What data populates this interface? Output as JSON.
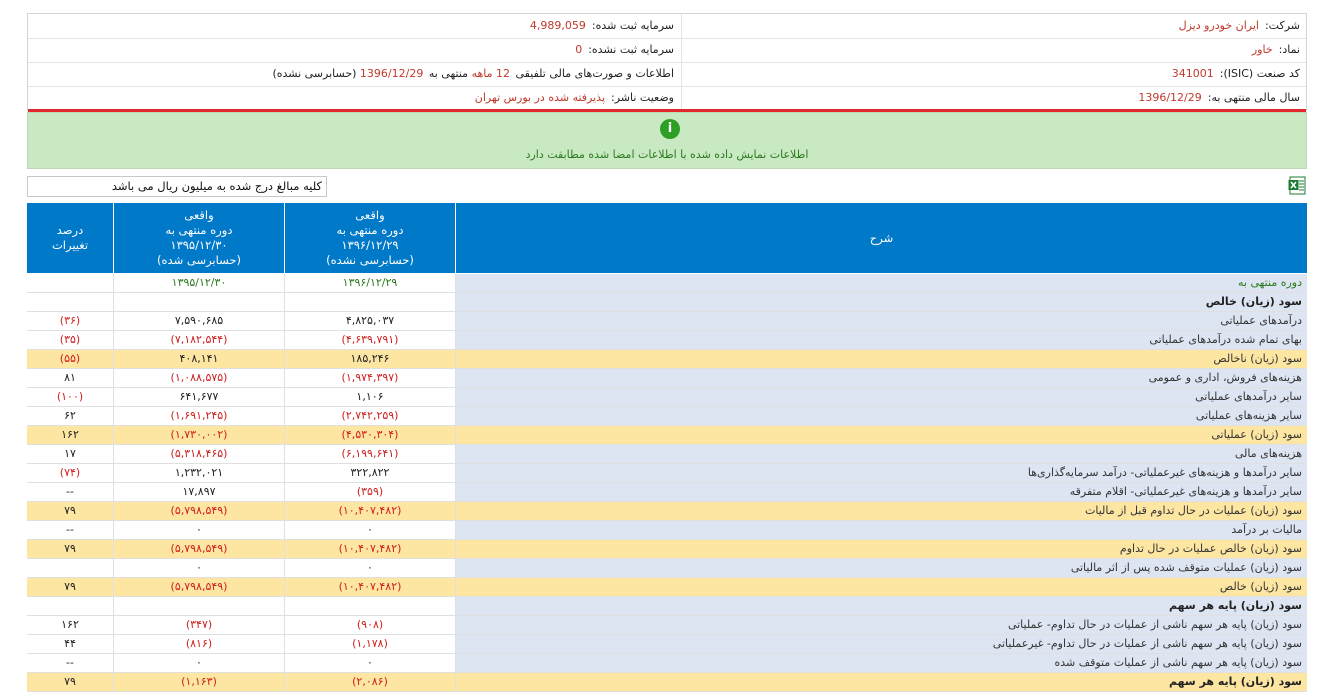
{
  "info": {
    "company_label": "شرکت:",
    "company_value": "ایران خودرو دیزل",
    "capital_label": "سرمایه ثبت شده:",
    "capital_value": "4,989,059",
    "symbol_label": "نماد:",
    "symbol_value": "خاور",
    "unreg_capital_label": "سرمایه ثبت نشده:",
    "unreg_capital_value": "0",
    "isic_label": "کد صنعت (ISIC):",
    "isic_value": "341001",
    "report_prefix": "اطلاعات و صورت‌های مالی تلفیقی",
    "report_period": "12 ماهه",
    "report_mid": "منتهی به",
    "report_date": "1396/12/29",
    "report_suffix": "(حسابرسی نشده)",
    "fy_label": "سال مالی منتهی به:",
    "fy_value": "1396/12/29",
    "status_label": "وضعیت ناشر:",
    "status_value": "پذیرفته شده در بورس تهران"
  },
  "notice": {
    "icon": "info-icon",
    "text": "اطلاعات نمایش داده شده با اطلاعات امضا شده مطابقت دارد"
  },
  "unit_note": "کلیه مبالغ درج شده به میلیون ریال می باشد",
  "excel_icon": "excel-export-icon",
  "colors": {
    "header_blue": "#0079c9",
    "highlight": "#fde5a2",
    "negative": "#d01f1f",
    "label_bg": "#dde5f2"
  },
  "table": {
    "headers": {
      "desc": "شرح",
      "cur_1": "واقعی",
      "cur_2": "دوره منتهی به",
      "cur_3": "۱۳۹۶/۱۲/۲۹",
      "cur_4": "(حسابرسی نشده)",
      "prev_1": "واقعی",
      "prev_2": "دوره منتهی به",
      "prev_3": "۱۳۹۵/۱۲/۳۰",
      "prev_4": "(حسابرسی شده)",
      "chg_1": "درصد",
      "chg_2": "تغییرات"
    },
    "rows": [
      {
        "label": "دوره منتهی به",
        "cur": "۱۳۹۶/۱۲/۲۹",
        "prev": "۱۳۹۵/۱۲/۳۰",
        "chg": "",
        "type": "date"
      },
      {
        "label": "سود (زیان) خالص",
        "cur": "",
        "prev": "",
        "chg": "",
        "type": "bold"
      },
      {
        "label": "درآمدهای عملیاتی",
        "cur": "۴,۸۲۵,۰۳۷",
        "prev": "۷,۵۹۰,۶۸۵",
        "chg": "(۳۶)",
        "type": ""
      },
      {
        "label": "بهای تمام شده درآمدهای عملیاتی",
        "cur": "(۴,۶۳۹,۷۹۱)",
        "prev": "(۷,۱۸۲,۵۴۴)",
        "chg": "(۳۵)",
        "type": ""
      },
      {
        "label": "سود (زیان) ناخالص",
        "cur": "۱۸۵,۲۴۶",
        "prev": "۴۰۸,۱۴۱",
        "chg": "(۵۵)",
        "type": "hl"
      },
      {
        "label": "هزینه‌های فروش، اداری و عمومی",
        "cur": "(۱,۹۷۴,۳۹۷)",
        "prev": "(۱,۰۸۸,۵۷۵)",
        "chg": "۸۱",
        "type": ""
      },
      {
        "label": "سایر درآمدهای عملیاتی",
        "cur": "۱,۱۰۶",
        "prev": "۶۴۱,۶۷۷",
        "chg": "(۱۰۰)",
        "type": ""
      },
      {
        "label": "سایر هزینه‌های عملیاتی",
        "cur": "(۲,۷۴۲,۲۵۹)",
        "prev": "(۱,۶۹۱,۲۴۵)",
        "chg": "۶۲",
        "type": ""
      },
      {
        "label": "سود (زیان) عملیاتی",
        "cur": "(۴,۵۳۰,۳۰۴)",
        "prev": "(۱,۷۳۰,۰۰۲)",
        "chg": "۱۶۲",
        "type": "hl"
      },
      {
        "label": "هزینه‌های مالی",
        "cur": "(۶,۱۹۹,۶۴۱)",
        "prev": "(۵,۳۱۸,۴۶۵)",
        "chg": "۱۷",
        "type": ""
      },
      {
        "label": "سایر درآمدها و هزینه‌های غیرعملیاتی- درآمد سرمایه‌گذاری‌ها",
        "cur": "۳۲۲,۸۲۲",
        "prev": "۱,۲۳۲,۰۲۱",
        "chg": "(۷۴)",
        "type": ""
      },
      {
        "label": "سایر درآمدها و هزینه‌های غیرعملیاتی- اقلام متفرقه",
        "cur": "(۳۵۹)",
        "prev": "۱۷,۸۹۷",
        "chg": "--",
        "type": ""
      },
      {
        "label": "سود (زیان) عملیات در حال تداوم قبل از مالیات",
        "cur": "(۱۰,۴۰۷,۴۸۲)",
        "prev": "(۵,۷۹۸,۵۴۹)",
        "chg": "۷۹",
        "type": "hl"
      },
      {
        "label": "مالیات بر درآمد",
        "cur": "۰",
        "prev": "۰",
        "chg": "--",
        "type": ""
      },
      {
        "label": "سود (زیان) خالص عملیات در حال تداوم",
        "cur": "(۱۰,۴۰۷,۴۸۲)",
        "prev": "(۵,۷۹۸,۵۴۹)",
        "chg": "۷۹",
        "type": "hl"
      },
      {
        "label": "سود (زیان) عملیات متوقف شده پس از اثر مالیاتی",
        "cur": "۰",
        "prev": "۰",
        "chg": "",
        "type": ""
      },
      {
        "label": "سود (زیان) خالص",
        "cur": "(۱۰,۴۰۷,۴۸۲)",
        "prev": "(۵,۷۹۸,۵۴۹)",
        "chg": "۷۹",
        "type": "hl"
      },
      {
        "label": "سود (زیان) پایه هر سهم",
        "cur": "",
        "prev": "",
        "chg": "",
        "type": "bold"
      },
      {
        "label": "سود (زیان) پایه هر سهم ناشی از عملیات در حال تداوم- عملیاتی",
        "cur": "(۹۰۸)",
        "prev": "(۳۴۷)",
        "chg": "۱۶۲",
        "type": ""
      },
      {
        "label": "سود (زیان) پایه هر سهم ناشی از عملیات در حال تداوم- غیرعملیاتی",
        "cur": "(۱,۱۷۸)",
        "prev": "(۸۱۶)",
        "chg": "۴۴",
        "type": ""
      },
      {
        "label": "سود (زیان) پایه هر سهم ناشی از عملیات متوقف شده",
        "cur": "۰",
        "prev": "۰",
        "chg": "--",
        "type": ""
      },
      {
        "label": "سود (زیان) پایه هر سهم",
        "cur": "(۲,۰۸۶)",
        "prev": "(۱,۱۶۳)",
        "chg": "۷۹",
        "type": "hl bold"
      }
    ]
  }
}
